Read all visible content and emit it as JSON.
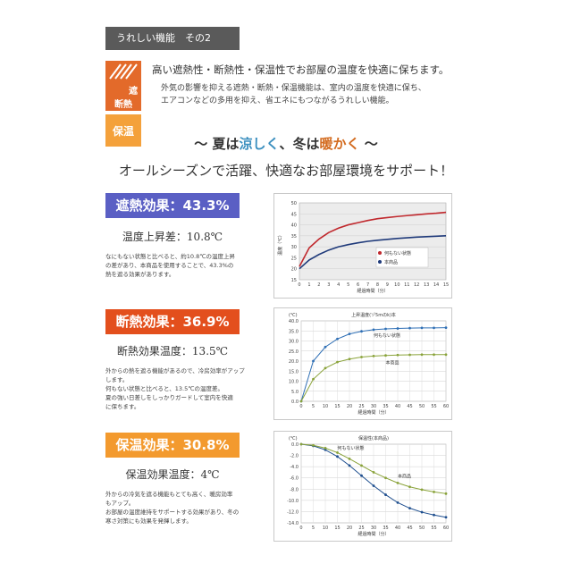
{
  "header": {
    "title": "うれしい機能　その2"
  },
  "icons": {
    "shade_label": "遮\n断熱",
    "shade_top": "遮",
    "shade_bottom": "断熱",
    "warm_label": "保温",
    "shade_icon": "sun-shade-icon"
  },
  "intro": {
    "lead": "高い遮熱性・断熱性・保温性でお部屋の温度を快適に保ちます。",
    "body1": "外気の影響を抑える遮熱・断熱・保温機能は、室内の温度を快適に保ち、",
    "body2": "エアコンなどの多用を抑え、省エネにもつながるうれしい機能。"
  },
  "tagline": {
    "pre": "〜 夏は",
    "cool": "涼しく",
    "mid": "、冬は",
    "warm": "暖かく",
    "post": " 〜"
  },
  "subtagline": "オールシーズンで活躍、快適なお部屋環境をサポート！",
  "sections": [
    {
      "badge": "遮熱効果：43.3%",
      "metric": "温度上昇差：10.8℃",
      "note1": "なにもない状態と比べると、約10.8℃の温度上昇",
      "note2": "の差があり、本商品を使用することで、43.3%の",
      "note3": "熱を遮る効果があります。",
      "accent": "#5a5fc4"
    },
    {
      "badge": "断熱効果：36.9%",
      "metric": "断熱効果温度：13.5℃",
      "note1": "外からの熱を遮る機能があるので、冷房効率がアップ",
      "note2": "します。",
      "note3": "何もない状態と比べると、13.5℃の温度差。",
      "note4": "夏の強い日差しをしっかりガードして室内を快適",
      "note5": "に保ちます。",
      "accent": "#e34f1d"
    },
    {
      "badge": "保温効果：30.8%",
      "metric": "保温効果温度：4℃",
      "note1": "外からの冷気を遮る機能もとても高く、暖房効率",
      "note2": "もアップ。",
      "note3": "お部屋の温度維持をサポートする効果があり、冬の",
      "note4": "寒さ対策にも効果を発揮します。",
      "accent": "#f39a2e"
    }
  ],
  "chart_data": [
    {
      "type": "line",
      "title": "",
      "xlabel": "経過時間（分）",
      "ylabel": "温度（℃）",
      "ylim": [
        15,
        50
      ],
      "x": [
        0,
        1,
        2,
        3,
        4,
        5,
        6,
        7,
        8,
        9,
        10,
        11,
        12,
        13,
        14,
        15
      ],
      "xticks": [
        "0",
        "1",
        "2",
        "3",
        "4",
        "5",
        "6",
        "7",
        "8",
        "9",
        "10",
        "11",
        "12",
        "13",
        "14",
        "15"
      ],
      "yticks": [
        "15",
        "20",
        "25",
        "30",
        "35",
        "40",
        "45",
        "50"
      ],
      "series": [
        {
          "name": "何もない状態",
          "color": "#c0282d",
          "values": [
            21,
            29.5,
            33.5,
            36.5,
            38.5,
            40,
            41,
            42,
            42.8,
            43.3,
            43.8,
            44.2,
            44.6,
            45,
            45.3,
            45.7
          ]
        },
        {
          "name": "本商品",
          "color": "#1f3a7a",
          "values": [
            20,
            24,
            26.5,
            28.5,
            30,
            31,
            31.8,
            32.5,
            33,
            33.4,
            33.8,
            34.1,
            34.4,
            34.6,
            34.8,
            35
          ]
        }
      ],
      "grid": true,
      "legend": "right"
    },
    {
      "type": "line",
      "title": "上昇温度(ゾ5mのk)本",
      "xlabel": "経過時間（分）",
      "ylabel": "(℃)",
      "ylim": [
        0,
        40
      ],
      "x": [
        0,
        5,
        10,
        15,
        20,
        25,
        30,
        35,
        40,
        45,
        50,
        55,
        60
      ],
      "xticks": [
        "0",
        "5",
        "10",
        "15",
        "20",
        "25",
        "30",
        "35",
        "40",
        "45",
        "50",
        "55",
        "60"
      ],
      "yticks": [
        "0.0",
        "5.0",
        "10.0",
        "15.0",
        "20.0",
        "25.0",
        "30.0",
        "35.0",
        "40.0"
      ],
      "series": [
        {
          "name": "何もない状態",
          "color": "#2f6fb5",
          "values": [
            0,
            20,
            27,
            31,
            33.5,
            34.8,
            35.6,
            36,
            36.2,
            36.4,
            36.5,
            36.5,
            36.6
          ]
        },
        {
          "name": "本商品",
          "color": "#8aa33a",
          "values": [
            0,
            11,
            16.5,
            19.5,
            21,
            22,
            22.5,
            22.8,
            23,
            23.1,
            23.2,
            23.2,
            23.2
          ]
        }
      ],
      "grid": true,
      "legend": "inline"
    },
    {
      "type": "line",
      "title": "保温性(本商品)",
      "xlabel": "経過時間（分）",
      "ylabel": "(℃)",
      "ylim": [
        -14,
        0
      ],
      "x": [
        0,
        5,
        10,
        15,
        20,
        25,
        30,
        35,
        40,
        45,
        50,
        55,
        60
      ],
      "xticks": [
        "0",
        "5",
        "10",
        "15",
        "20",
        "25",
        "30",
        "35",
        "40",
        "45",
        "50",
        "55",
        "60"
      ],
      "yticks": [
        "0.0",
        "-2.0",
        "-4.0",
        "-6.0",
        "-8.0",
        "-10.0",
        "-12.0",
        "-14.0"
      ],
      "series": [
        {
          "name": "何もない状態",
          "color": "#1f4f8f",
          "values": [
            0,
            -0.3,
            -1,
            -2.2,
            -3.8,
            -5.6,
            -7.4,
            -9,
            -10.4,
            -11.4,
            -12.1,
            -12.6,
            -13
          ]
        },
        {
          "name": "本商品",
          "color": "#8aa33a",
          "values": [
            0,
            -0.2,
            -0.7,
            -1.5,
            -2.6,
            -3.8,
            -5,
            -6,
            -6.9,
            -7.6,
            -8.1,
            -8.5,
            -8.8
          ]
        }
      ],
      "grid": true,
      "legend": "inline"
    }
  ]
}
